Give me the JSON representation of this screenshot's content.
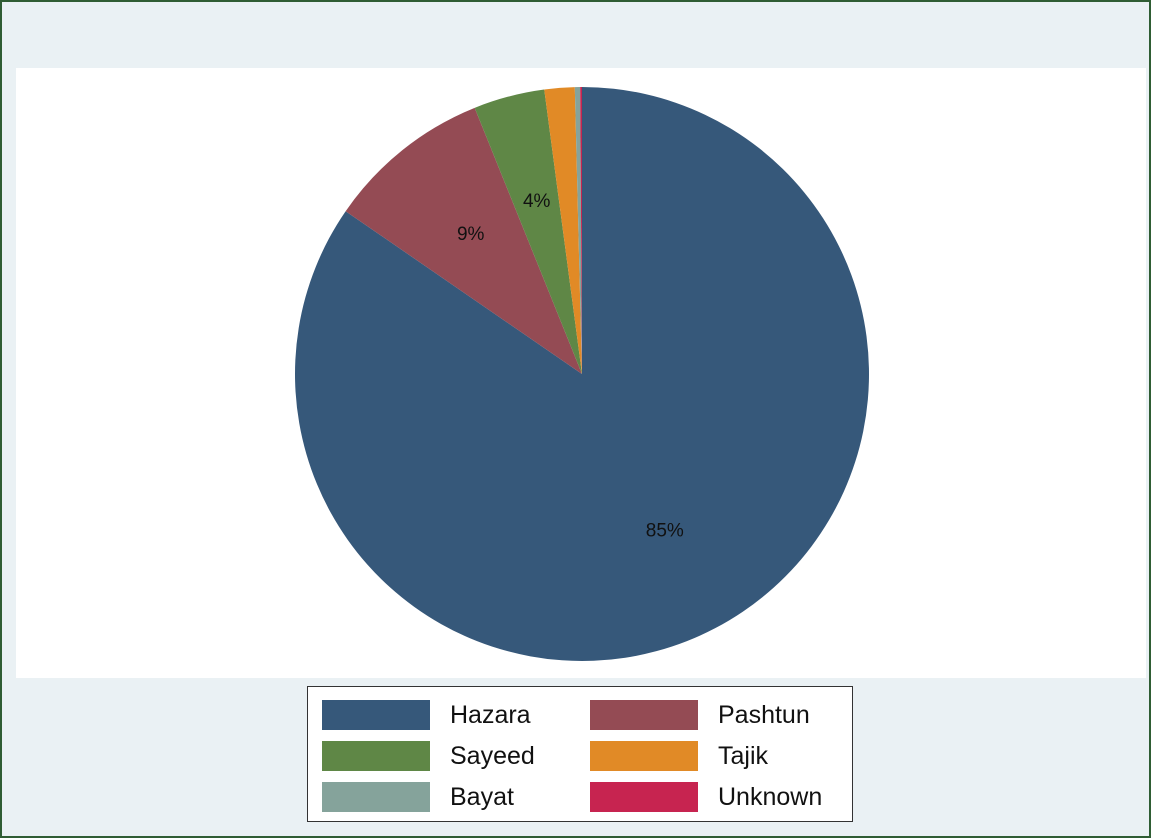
{
  "chart_data": {
    "type": "pie",
    "categories": [
      "Hazara",
      "Pashtun",
      "Sayeed",
      "Tajik",
      "Bayat",
      "Unknown"
    ],
    "values": [
      84.6,
      9.3,
      4.0,
      1.7,
      0.3,
      0.1
    ],
    "slice_labels": [
      "85%",
      "9%",
      "4%",
      "",
      "",
      ""
    ],
    "colors": [
      "#36587a",
      "#944b54",
      "#5f8746",
      "#e18a26",
      "#85a39b",
      "#c72450"
    ],
    "start_angle": "12 o'clock",
    "direction": "clockwise",
    "legend_position": "bottom",
    "legend_columns": 2
  }
}
